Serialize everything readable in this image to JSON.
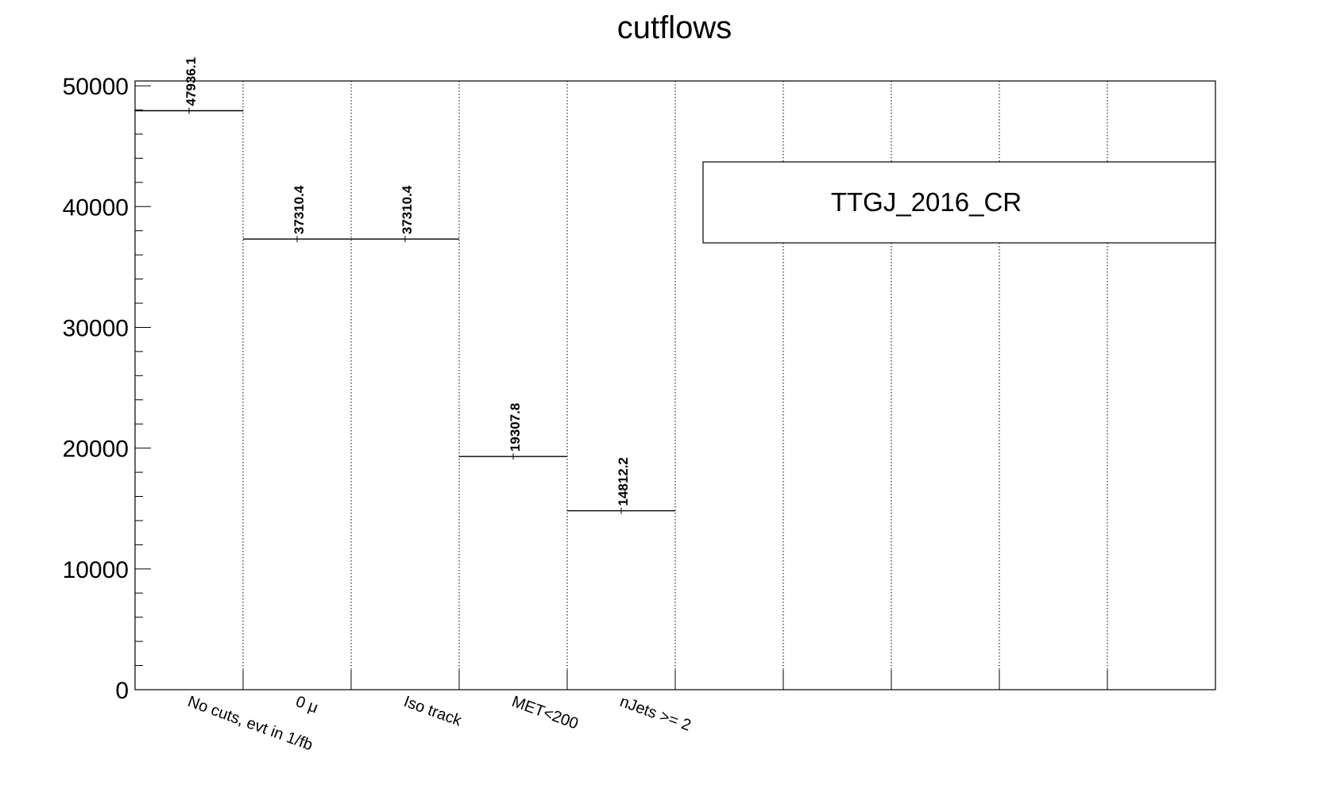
{
  "chart_data": {
    "type": "bar",
    "histogram_style": "step",
    "title": "cutflows",
    "xlabel": "",
    "ylabel": "",
    "ylim": [
      0,
      50400
    ],
    "yticks": [
      0,
      10000,
      20000,
      30000,
      40000,
      50000
    ],
    "ytick_labels": [
      "0",
      "10000",
      "20000",
      "30000",
      "40000",
      "50000"
    ],
    "nbins": 10,
    "categories": [
      "No cuts, evt in 1/fb",
      "0 μ",
      "Iso track",
      "MET<200",
      "nJets >= 2",
      "",
      "",
      "",
      "",
      ""
    ],
    "values": [
      47936.1,
      37310.4,
      37310.4,
      19307.8,
      14812.2,
      0,
      0,
      0,
      0,
      0
    ],
    "value_labels": [
      "47936.1",
      "37310.4",
      "37310.4",
      "19307.8",
      "14812.2",
      "",
      "",
      "",
      "",
      ""
    ],
    "grid": "vertical dotted",
    "legend": {
      "position": "top-right",
      "entries": [
        "TTGJ_2016_CR"
      ]
    }
  }
}
